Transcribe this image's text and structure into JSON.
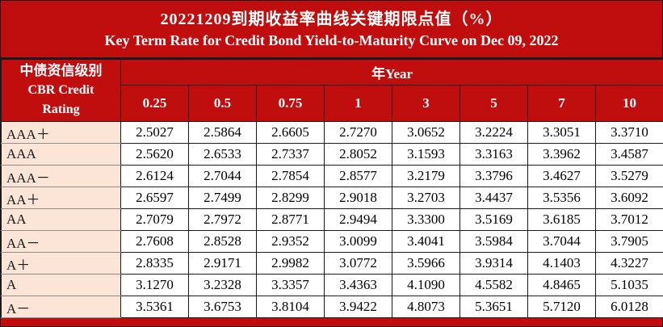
{
  "title": {
    "line1": "20221209到期收益率曲线关键期限点值（%）",
    "line2": "Key Term Rate for Credit Bond Yield-to-Maturity Curve on Dec 09, 2022"
  },
  "table": {
    "rating_header": {
      "zh": "中债资信级别",
      "en1": "CBR Credit",
      "en2": "Rating"
    },
    "year_header": "年Year",
    "terms": [
      "0.25",
      "0.5",
      "0.75",
      "1",
      "3",
      "5",
      "7",
      "10"
    ],
    "rows": [
      {
        "rating": "AAA＋",
        "values": [
          "2.5027",
          "2.5864",
          "2.6605",
          "2.7270",
          "3.0652",
          "3.2224",
          "3.3051",
          "3.3710"
        ]
      },
      {
        "rating": "AAA",
        "values": [
          "2.5620",
          "2.6533",
          "2.7337",
          "2.8052",
          "3.1593",
          "3.3163",
          "3.3962",
          "3.4587"
        ]
      },
      {
        "rating": "AAA－",
        "values": [
          "2.6124",
          "2.7044",
          "2.7854",
          "2.8577",
          "3.2179",
          "3.3796",
          "3.4627",
          "3.5279"
        ]
      },
      {
        "rating": "AA＋",
        "values": [
          "2.6597",
          "2.7499",
          "2.8299",
          "2.9018",
          "3.2703",
          "3.4437",
          "3.5356",
          "3.6092"
        ]
      },
      {
        "rating": "AA",
        "values": [
          "2.7079",
          "2.7972",
          "2.8771",
          "2.9494",
          "3.3300",
          "3.5169",
          "3.6185",
          "3.7012"
        ]
      },
      {
        "rating": "AA－",
        "values": [
          "2.7608",
          "2.8528",
          "2.9352",
          "3.0099",
          "3.4041",
          "3.5984",
          "3.7044",
          "3.7905"
        ]
      },
      {
        "rating": "A＋",
        "values": [
          "2.8335",
          "2.9171",
          "2.9982",
          "3.0772",
          "3.5966",
          "3.9314",
          "4.1403",
          "4.3227"
        ]
      },
      {
        "rating": "A",
        "values": [
          "3.1270",
          "3.2328",
          "3.3357",
          "3.4363",
          "4.1090",
          "4.5582",
          "4.8465",
          "5.1035"
        ]
      },
      {
        "rating": "A－",
        "values": [
          "3.5361",
          "3.6753",
          "3.8104",
          "3.9422",
          "4.8073",
          "5.3651",
          "5.7120",
          "6.0128"
        ]
      }
    ]
  },
  "colors": {
    "banner_red": "#C00D0D",
    "rating_bg": "#FCE4D6",
    "border": "#1B1B1B",
    "header_text": "#FFFFFF",
    "data_text": "#000000"
  }
}
